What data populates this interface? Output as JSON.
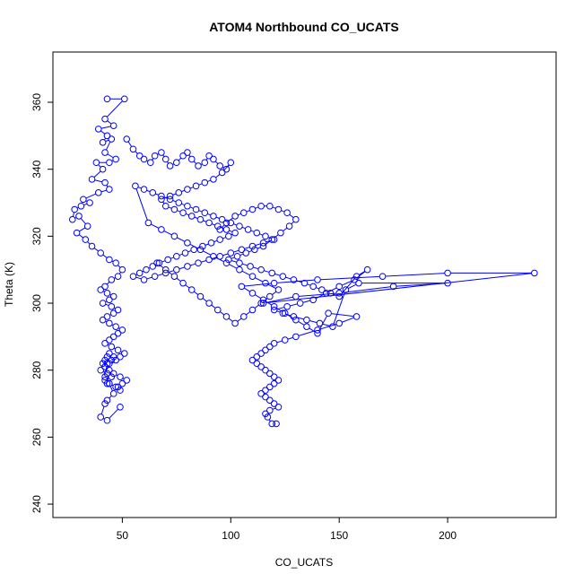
{
  "chart_data": {
    "type": "scatter",
    "title": "ATOM4 Northbound CO_UCATS",
    "xlabel": "CO_UCATS",
    "ylabel": "Theta (K)",
    "xlim": [
      18,
      250
    ],
    "ylim": [
      236,
      375
    ],
    "xticks": [
      50,
      100,
      150,
      200
    ],
    "yticks": [
      240,
      260,
      280,
      300,
      320,
      340,
      360
    ],
    "grid": false,
    "legend": "none",
    "marker": "open-circle",
    "connected": true,
    "color": "#0000ff",
    "series": [
      {
        "x": [
          43,
          51,
          42,
          46,
          39,
          43,
          41,
          45,
          42,
          47,
          44,
          38,
          41,
          36,
          42,
          44,
          39,
          32,
          35,
          31,
          28,
          27,
          30,
          34,
          29,
          33,
          36,
          40,
          44,
          47,
          50,
          48,
          45,
          42,
          40,
          43,
          46,
          44,
          41,
          45,
          48,
          46,
          43,
          41,
          44,
          47,
          50,
          48,
          46,
          44,
          42,
          45,
          48,
          51,
          49,
          47,
          44,
          42,
          40,
          43,
          45,
          42,
          43,
          44,
          47,
          49,
          48,
          50,
          52,
          49,
          46,
          44,
          42,
          41,
          42,
          43,
          44,
          46,
          45,
          43,
          42,
          44,
          46,
          43,
          42,
          40,
          43,
          49
        ],
        "y": [
          361,
          361,
          355,
          353,
          352,
          350,
          348,
          349,
          345,
          343,
          342,
          342,
          340,
          337,
          336,
          334,
          333,
          331,
          330,
          329,
          328,
          325,
          326,
          323,
          321,
          319,
          317,
          315,
          313,
          312,
          310,
          308,
          307,
          305,
          304,
          303,
          302,
          301,
          300,
          299,
          298,
          297,
          296,
          295,
          294,
          293,
          292,
          291,
          290,
          289,
          288,
          287,
          286,
          285,
          284,
          283,
          282,
          281,
          280,
          279,
          278,
          277,
          276,
          276,
          275,
          274,
          275,
          276,
          277,
          278,
          279,
          280,
          281,
          282,
          283,
          284,
          285,
          284,
          283,
          282,
          278,
          276,
          273,
          271,
          270,
          266,
          265,
          269
        ]
      },
      {
        "x": [
          52,
          55,
          58,
          60,
          63,
          65,
          68,
          70,
          72,
          75,
          78,
          80,
          82,
          85,
          88,
          90,
          92,
          95,
          98,
          100,
          96,
          92,
          88,
          84,
          80,
          76,
          72,
          68,
          70,
          74,
          78,
          82,
          86,
          90,
          94,
          98,
          102,
          99,
          95,
          91,
          87,
          83,
          79,
          75,
          71,
          67,
          64,
          61,
          58,
          55,
          60,
          65,
          70,
          75,
          80,
          85,
          90,
          95,
          100,
          105,
          110,
          115,
          120,
          116,
          112,
          108,
          104,
          100,
          96,
          92,
          88,
          84,
          80,
          76,
          72,
          68,
          64,
          60,
          56,
          62,
          68,
          74,
          80,
          86,
          92,
          98,
          104,
          110,
          116,
          122,
          118,
          114,
          110,
          106,
          102,
          98,
          94,
          90,
          86,
          82,
          78,
          74,
          70,
          66
        ],
        "y": [
          349,
          346,
          344,
          343,
          342,
          344,
          345,
          343,
          341,
          342,
          344,
          345,
          343,
          341,
          342,
          344,
          343,
          341,
          340,
          342,
          339,
          337,
          336,
          335,
          334,
          333,
          332,
          331,
          329,
          328,
          327,
          326,
          325,
          324,
          323,
          322,
          321,
          320,
          319,
          318,
          317,
          316,
          315,
          314,
          313,
          312,
          311,
          310,
          309,
          308,
          307,
          308,
          309,
          310,
          311,
          312,
          313,
          314,
          315,
          316,
          317,
          318,
          319,
          320,
          321,
          322,
          323,
          324,
          325,
          326,
          327,
          328,
          329,
          330,
          331,
          332,
          333,
          334,
          335,
          324,
          322,
          320,
          318,
          316,
          314,
          312,
          310,
          308,
          306,
          304,
          302,
          300,
          298,
          296,
          294,
          296,
          298,
          300,
          302,
          304,
          306,
          308,
          310,
          312
        ]
      },
      {
        "x": [
          95,
          98,
          102,
          106,
          110,
          114,
          118,
          122,
          126,
          130,
          127,
          123,
          119,
          115,
          111,
          107,
          103,
          99,
          104,
          109,
          114,
          119,
          124,
          129,
          134,
          138,
          142,
          146,
          150,
          158,
          163,
          157,
          150,
          144,
          138,
          132,
          126,
          120,
          124,
          129,
          135,
          141,
          147,
          153,
          159,
          200,
          175,
          150,
          130,
          115,
          240,
          200,
          170,
          140,
          120,
          105,
          110,
          115,
          120,
          125,
          130,
          135,
          140,
          145,
          158,
          150,
          140,
          130,
          125,
          120,
          118,
          116,
          114,
          112,
          110,
          112,
          114,
          116,
          118,
          120,
          122,
          120,
          118,
          116,
          114,
          116,
          118,
          120,
          122,
          118,
          116,
          117,
          119,
          121
        ],
        "y": [
          322,
          324,
          326,
          327,
          328,
          329,
          329,
          328,
          327,
          325,
          323,
          321,
          319,
          317,
          316,
          315,
          314,
          313,
          312,
          311,
          310,
          309,
          308,
          307,
          306,
          305,
          304,
          303,
          302,
          308,
          310,
          307,
          305,
          303,
          301,
          300,
          299,
          298,
          297,
          296,
          295,
          294,
          293,
          304,
          306,
          306,
          305,
          303,
          302,
          300,
          309,
          309,
          308,
          307,
          306,
          305,
          303,
          301,
          299,
          297,
          295,
          293,
          291,
          297,
          296,
          294,
          292,
          290,
          289,
          288,
          287,
          286,
          285,
          284,
          283,
          282,
          281,
          280,
          279,
          278,
          277,
          276,
          275,
          274,
          273,
          272,
          271,
          270,
          269,
          268,
          267,
          266,
          264,
          264
        ]
      }
    ]
  }
}
